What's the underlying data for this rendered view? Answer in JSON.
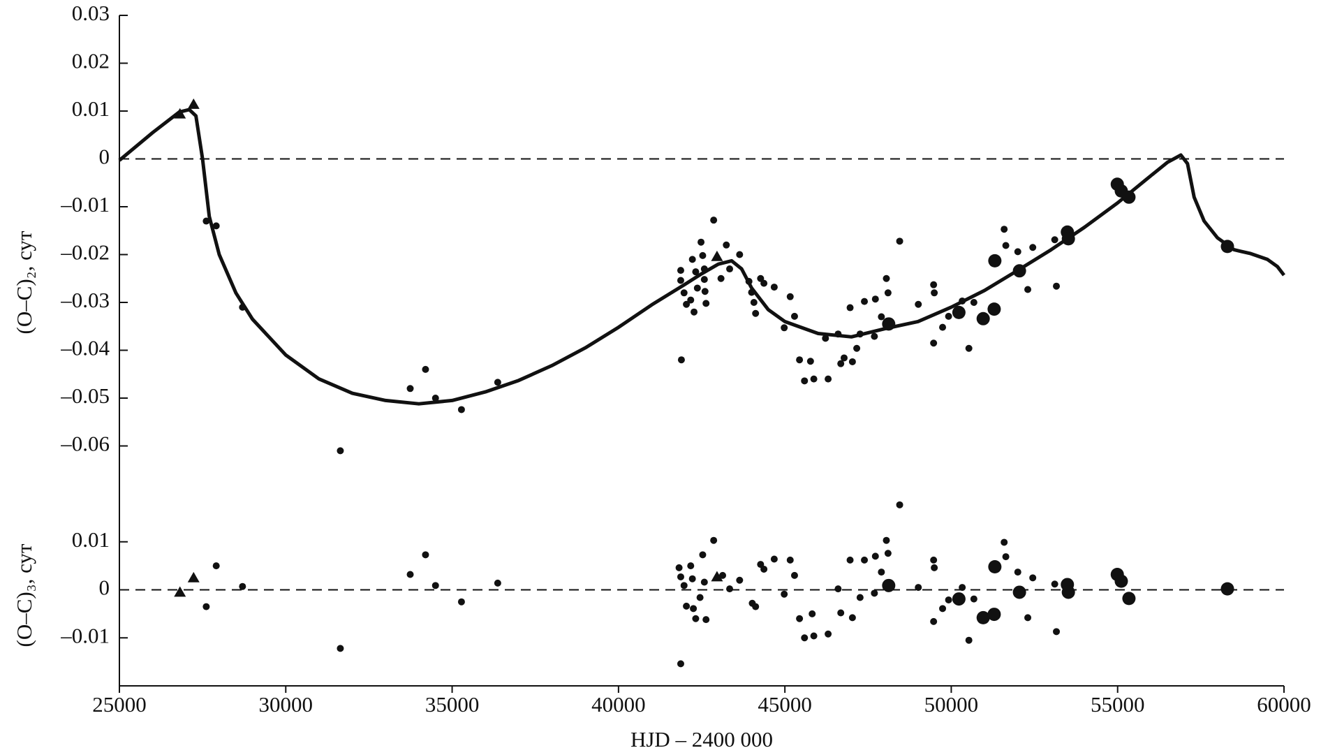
{
  "chart_data": [
    {
      "type": "scatter",
      "ylabel": "(O–C)₂, сут",
      "xlim": [
        25000,
        60000
      ],
      "ylim": [
        -0.07,
        0.03
      ],
      "yticks": [
        0.03,
        0.02,
        0.01,
        0,
        {
          "value": -0.01,
          "label": "–0.01"
        },
        {
          "value": -0.02,
          "label": "–0.02"
        },
        {
          "value": -0.03,
          "label": "–0.03"
        },
        {
          "value": -0.04,
          "label": "–0.04"
        },
        {
          "value": -0.05,
          "label": "–0.05"
        },
        {
          "value": -0.06,
          "label": "–0.06"
        }
      ],
      "hline": 0,
      "series": [
        {
          "marker": "line",
          "color": "#111111",
          "x": [
            25000,
            26000,
            26800,
            27100,
            27300,
            27500,
            27700,
            28000,
            28500,
            29000,
            30000,
            31000,
            32000,
            33000,
            34000,
            35000,
            36000,
            37000,
            38000,
            39000,
            40000,
            41000,
            42000,
            42500,
            43000,
            43400,
            43700,
            44000,
            44500,
            45000,
            46000,
            47000,
            48000,
            49000,
            50000,
            51000,
            52000,
            53000,
            54000,
            55000,
            56000,
            56500,
            56900,
            57100,
            57300,
            57600,
            58000,
            58500,
            59000,
            59500,
            59800,
            60000
          ],
          "values": [
            -0.0003,
            0.0055,
            0.0098,
            0.0103,
            0.009,
            0.0,
            -0.012,
            -0.02,
            -0.028,
            -0.0335,
            -0.041,
            -0.046,
            -0.049,
            -0.0505,
            -0.0512,
            -0.0505,
            -0.0487,
            -0.0463,
            -0.0432,
            -0.0395,
            -0.0352,
            -0.0305,
            -0.0262,
            -0.024,
            -0.022,
            -0.0213,
            -0.023,
            -0.027,
            -0.0315,
            -0.034,
            -0.0365,
            -0.0372,
            -0.0355,
            -0.034,
            -0.031,
            -0.0275,
            -0.0233,
            -0.019,
            -0.0143,
            -0.0092,
            -0.0035,
            -0.0007,
            0.0008,
            -0.001,
            -0.008,
            -0.013,
            -0.0165,
            -0.019,
            -0.0198,
            -0.021,
            -0.0225,
            -0.0243
          ]
        },
        {
          "marker": "dot",
          "color": "#111111",
          "x": [
            27610,
            27910,
            28700,
            31640,
            33740,
            34200,
            34500,
            35280,
            36370,
            41870,
            41870,
            41890,
            41970,
            42040,
            42170,
            42220,
            42320,
            42370,
            42270,
            42480,
            42530,
            42580,
            42580,
            42600,
            42630,
            42860,
            43080,
            43240,
            43340,
            43640,
            43920,
            44000,
            44070,
            44120,
            44270,
            44370,
            44680,
            44980,
            45160,
            45290,
            45440,
            45590,
            45770,
            45870,
            46220,
            46300,
            46600,
            46680,
            46780,
            46960,
            47030,
            47160,
            47260,
            47390,
            47690,
            47720,
            47900,
            48050,
            48100,
            48450,
            49010,
            49470,
            49490,
            49470,
            49740,
            49920,
            50330,
            50530,
            50680,
            51590,
            51640,
            52000,
            52300,
            52450,
            53160,
            53110
          ],
          "values": [
            -0.013,
            -0.014,
            -0.031,
            -0.061,
            -0.048,
            -0.044,
            -0.05,
            -0.0524,
            -0.0467,
            -0.0233,
            -0.0254,
            -0.042,
            -0.028,
            -0.0304,
            -0.0295,
            -0.021,
            -0.0236,
            -0.027,
            -0.032,
            -0.0174,
            -0.0202,
            -0.023,
            -0.0252,
            -0.0277,
            -0.0302,
            -0.0128,
            -0.025,
            -0.018,
            -0.023,
            -0.02,
            -0.0256,
            -0.0279,
            -0.03,
            -0.0323,
            -0.025,
            -0.026,
            -0.0268,
            -0.0353,
            -0.0288,
            -0.0329,
            -0.042,
            -0.0464,
            -0.0423,
            -0.046,
            -0.0375,
            -0.046,
            -0.0366,
            -0.0428,
            -0.0416,
            -0.0311,
            -0.0424,
            -0.0396,
            -0.0366,
            -0.0298,
            -0.0371,
            -0.0293,
            -0.033,
            -0.025,
            -0.028,
            -0.0172,
            -0.0304,
            -0.0263,
            -0.028,
            -0.0385,
            -0.0352,
            -0.0329,
            -0.0297,
            -0.0396,
            -0.03,
            -0.0147,
            -0.0181,
            -0.0194,
            -0.0273,
            -0.0185,
            -0.0266,
            -0.0169
          ]
        },
        {
          "marker": "big-dot",
          "color": "#111111",
          "x": [
            48120,
            50230,
            50960,
            51290,
            51310,
            52050,
            53490,
            53520,
            54990,
            55110,
            55340,
            58300
          ],
          "values": [
            -0.0345,
            -0.0321,
            -0.0334,
            -0.0314,
            -0.0213,
            -0.0234,
            -0.0153,
            -0.0167,
            -0.0053,
            -0.0067,
            -0.008,
            -0.0183
          ]
        },
        {
          "marker": "triangle",
          "color": "#111111",
          "x": [
            26820,
            27230,
            42960
          ],
          "values": [
            0.0092,
            0.0112,
            -0.0206
          ]
        }
      ]
    },
    {
      "type": "scatter",
      "ylabel": "(O–C)₃, сут",
      "xlabel": "HJD – 2400 000",
      "xlim": [
        25000,
        60000
      ],
      "xticks": [
        25000,
        30000,
        35000,
        40000,
        45000,
        50000,
        55000,
        60000
      ],
      "ylim": [
        -0.02,
        0.02
      ],
      "yticks": [
        0.01,
        0,
        {
          "value": -0.01,
          "label": "–0.01"
        }
      ],
      "hline": 0,
      "series": [
        {
          "marker": "dot",
          "color": "#111111",
          "x": [
            27610,
            27910,
            28700,
            31640,
            33740,
            34200,
            34500,
            35280,
            36370,
            41870,
            41820,
            41870,
            41970,
            42040,
            42170,
            42220,
            42250,
            42320,
            42450,
            42530,
            42580,
            42630,
            42860,
            43130,
            43340,
            43640,
            44020,
            44120,
            44270,
            44370,
            44680,
            44980,
            45160,
            45290,
            45440,
            45590,
            45820,
            45870,
            46300,
            46600,
            46680,
            46960,
            47030,
            47260,
            47390,
            47690,
            47720,
            47900,
            48050,
            48100,
            48450,
            49010,
            49470,
            49490,
            49470,
            49740,
            49920,
            50330,
            50530,
            50680,
            51590,
            51640,
            52000,
            52300,
            52450,
            53160,
            53110
          ],
          "values": [
            -0.0035,
            0.005,
            0.0007,
            -0.0122,
            0.0032,
            0.0073,
            0.0009,
            -0.0025,
            0.0014,
            -0.0154,
            0.0046,
            0.0027,
            0.0009,
            -0.0034,
            0.005,
            0.0023,
            -0.0039,
            -0.006,
            -0.0016,
            0.0073,
            0.0016,
            -0.0062,
            0.0103,
            0.003,
            0.0002,
            0.002,
            -0.0028,
            -0.0035,
            0.0053,
            0.0043,
            0.0064,
            -0.0009,
            0.0062,
            0.003,
            -0.006,
            -0.01,
            -0.005,
            -0.0096,
            -0.0092,
            0.0002,
            -0.0048,
            0.0062,
            -0.0058,
            -0.0016,
            0.0062,
            -0.0007,
            0.007,
            0.0037,
            0.0103,
            0.0076,
            0.0177,
            0.0005,
            0.0062,
            0.0046,
            -0.0066,
            -0.0039,
            -0.0021,
            0.0005,
            -0.0105,
            -0.0019,
            0.0099,
            0.0069,
            0.0037,
            -0.0058,
            0.0025,
            -0.0087,
            0.0012
          ]
        },
        {
          "marker": "big-dot",
          "color": "#111111",
          "x": [
            48120,
            50230,
            50960,
            51290,
            51310,
            52050,
            53490,
            53520,
            54990,
            55110,
            55340,
            58300
          ],
          "values": [
            0.0009,
            -0.0019,
            -0.0058,
            -0.0051,
            0.0048,
            -0.0005,
            0.0011,
            -0.0005,
            0.0032,
            0.0018,
            -0.0018,
            0.0002
          ]
        },
        {
          "marker": "triangle",
          "color": "#111111",
          "x": [
            26820,
            27230,
            42960
          ],
          "values": [
            -0.0007,
            0.0023,
            0.0025
          ]
        }
      ]
    }
  ]
}
